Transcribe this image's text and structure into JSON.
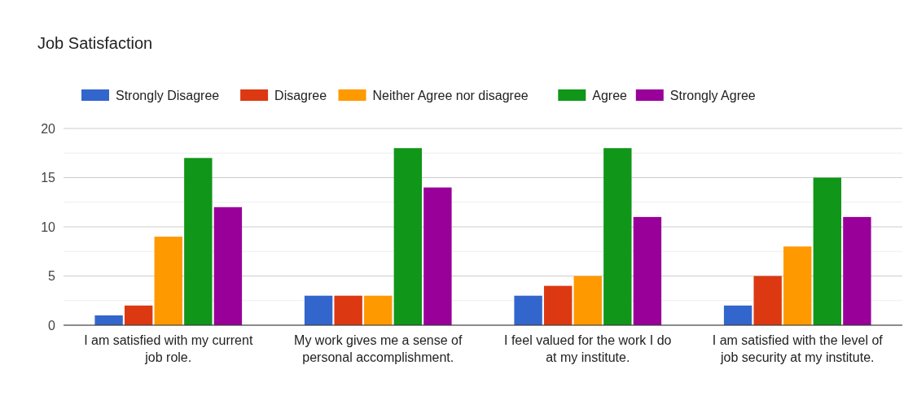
{
  "chart_data": {
    "type": "bar",
    "title": "Job Satisfaction",
    "categories": [
      "I am satisfied with my current job role.",
      "My work gives me a sense of personal accomplishment.",
      "I feel valued for the work I do at my institute.",
      "I am satisfied with the level of job security at my institute."
    ],
    "series": [
      {
        "name": "Strongly Disagree",
        "color": "#3366cc",
        "values": [
          1,
          3,
          3,
          2
        ]
      },
      {
        "name": "Disagree",
        "color": "#dc3912",
        "values": [
          2,
          3,
          4,
          5
        ]
      },
      {
        "name": "Neither Agree nor disagree",
        "color": "#ff9900",
        "values": [
          9,
          3,
          5,
          8
        ]
      },
      {
        "name": "Agree",
        "color": "#109618",
        "values": [
          17,
          18,
          18,
          15
        ]
      },
      {
        "name": "Strongly Agree",
        "color": "#990099",
        "values": [
          12,
          14,
          11,
          11
        ]
      }
    ],
    "ylim": [
      0,
      20
    ],
    "yticks": [
      0,
      {
        "value": 2.5,
        "label": null
      },
      5,
      {
        "value": 7.5,
        "label": null
      },
      10,
      {
        "value": 12.5,
        "label": null
      },
      15,
      {
        "value": 17.5,
        "label": null
      },
      20
    ],
    "grid": true,
    "legend": "top"
  }
}
